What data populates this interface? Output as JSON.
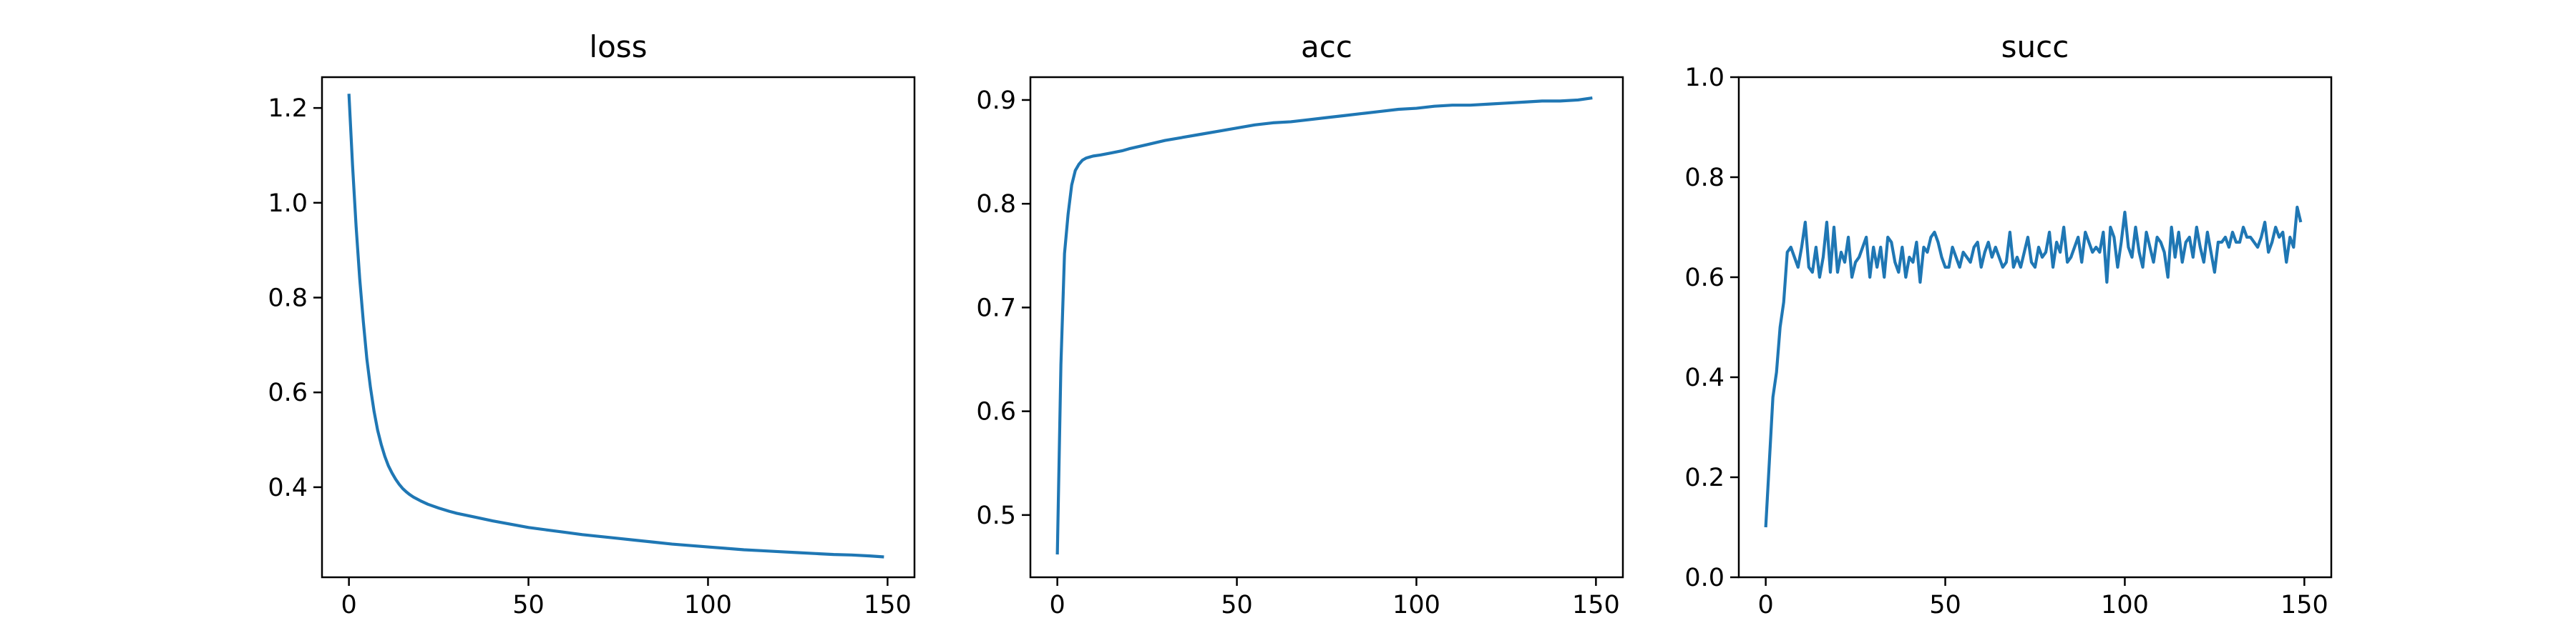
{
  "figure": {
    "background": "#ffffff",
    "line_color": "#1f77b4"
  },
  "chart_data": [
    {
      "type": "line",
      "title": "loss",
      "xlabel": "",
      "ylabel": "",
      "xlim": [
        -7.5,
        157.5
      ],
      "ylim": [
        0.21,
        1.265
      ],
      "xticks": [
        0,
        50,
        100,
        150
      ],
      "xtick_labels": [
        "0",
        "50",
        "100",
        "150"
      ],
      "yticks": [
        0.4,
        0.6,
        0.8,
        1.0,
        1.2
      ],
      "ytick_labels": [
        "0.4",
        "0.6",
        "0.8",
        "1.0",
        "1.2"
      ],
      "grid": false,
      "legend": "none",
      "series": [
        {
          "x": [
            0,
            1,
            2,
            3,
            4,
            5,
            6,
            7,
            8,
            9,
            10,
            11,
            12,
            13,
            14,
            15,
            16,
            17,
            18,
            19,
            20,
            22,
            25,
            28,
            30,
            35,
            40,
            45,
            50,
            55,
            60,
            65,
            70,
            75,
            80,
            85,
            90,
            95,
            100,
            105,
            110,
            115,
            120,
            125,
            130,
            135,
            140,
            145,
            149
          ],
          "y": [
            1.23,
            1.08,
            0.95,
            0.84,
            0.75,
            0.67,
            0.61,
            0.56,
            0.52,
            0.49,
            0.465,
            0.445,
            0.43,
            0.417,
            0.406,
            0.397,
            0.39,
            0.384,
            0.379,
            0.375,
            0.371,
            0.364,
            0.356,
            0.349,
            0.345,
            0.337,
            0.329,
            0.322,
            0.315,
            0.31,
            0.305,
            0.3,
            0.296,
            0.292,
            0.288,
            0.284,
            0.28,
            0.277,
            0.274,
            0.271,
            0.268,
            0.266,
            0.264,
            0.262,
            0.26,
            0.258,
            0.257,
            0.255,
            0.253
          ]
        }
      ]
    },
    {
      "type": "line",
      "title": "acc",
      "xlabel": "",
      "ylabel": "",
      "xlim": [
        -7.5,
        157.5
      ],
      "ylim": [
        0.44,
        0.922
      ],
      "xticks": [
        0,
        50,
        100,
        150
      ],
      "xtick_labels": [
        "0",
        "50",
        "100",
        "150"
      ],
      "yticks": [
        0.5,
        0.6,
        0.7,
        0.8,
        0.9
      ],
      "ytick_labels": [
        "0.5",
        "0.6",
        "0.7",
        "0.8",
        "0.9"
      ],
      "grid": false,
      "legend": "none",
      "series": [
        {
          "x": [
            0,
            1,
            2,
            3,
            4,
            5,
            6,
            7,
            8,
            9,
            10,
            12,
            15,
            18,
            20,
            25,
            30,
            35,
            40,
            45,
            50,
            55,
            60,
            65,
            70,
            75,
            80,
            85,
            90,
            95,
            100,
            105,
            110,
            115,
            120,
            125,
            130,
            135,
            140,
            145,
            149
          ],
          "y": [
            0.462,
            0.645,
            0.752,
            0.79,
            0.818,
            0.832,
            0.838,
            0.842,
            0.844,
            0.845,
            0.846,
            0.847,
            0.849,
            0.851,
            0.853,
            0.857,
            0.861,
            0.864,
            0.867,
            0.87,
            0.873,
            0.876,
            0.878,
            0.879,
            0.881,
            0.883,
            0.885,
            0.887,
            0.889,
            0.891,
            0.892,
            0.894,
            0.895,
            0.895,
            0.896,
            0.897,
            0.898,
            0.899,
            0.899,
            0.9,
            0.902
          ]
        }
      ]
    },
    {
      "type": "line",
      "title": "succ",
      "xlabel": "",
      "ylabel": "",
      "xlim": [
        -7.5,
        157.5
      ],
      "ylim": [
        0.0,
        1.0
      ],
      "xticks": [
        0,
        50,
        100,
        150
      ],
      "xtick_labels": [
        "0",
        "50",
        "100",
        "150"
      ],
      "yticks": [
        0.0,
        0.2,
        0.4,
        0.6,
        0.8,
        1.0
      ],
      "ytick_labels": [
        "0.0",
        "0.2",
        "0.4",
        "0.6",
        "0.8",
        "1.0"
      ],
      "grid": false,
      "legend": "none",
      "series": [
        {
          "x": [
            0,
            1,
            2,
            3,
            4,
            5,
            6,
            7,
            8,
            9,
            10,
            11,
            12,
            13,
            14,
            15,
            16,
            17,
            18,
            19,
            20,
            21,
            22,
            23,
            24,
            25,
            26,
            27,
            28,
            29,
            30,
            31,
            32,
            33,
            34,
            35,
            36,
            37,
            38,
            39,
            40,
            41,
            42,
            43,
            44,
            45,
            46,
            47,
            48,
            49,
            50,
            51,
            52,
            53,
            54,
            55,
            56,
            57,
            58,
            59,
            60,
            61,
            62,
            63,
            64,
            65,
            66,
            67,
            68,
            69,
            70,
            71,
            72,
            73,
            74,
            75,
            76,
            77,
            78,
            79,
            80,
            81,
            82,
            83,
            84,
            85,
            86,
            87,
            88,
            89,
            90,
            91,
            92,
            93,
            94,
            95,
            96,
            97,
            98,
            99,
            100,
            101,
            102,
            103,
            104,
            105,
            106,
            107,
            108,
            109,
            110,
            111,
            112,
            113,
            114,
            115,
            116,
            117,
            118,
            119,
            120,
            121,
            122,
            123,
            124,
            125,
            126,
            127,
            128,
            129,
            130,
            131,
            132,
            133,
            134,
            135,
            136,
            137,
            138,
            139,
            140,
            141,
            142,
            143,
            144,
            145,
            146,
            147,
            148,
            149
          ],
          "y": [
            0.1,
            0.23,
            0.36,
            0.41,
            0.5,
            0.55,
            0.65,
            0.66,
            0.64,
            0.62,
            0.66,
            0.71,
            0.62,
            0.61,
            0.66,
            0.6,
            0.64,
            0.71,
            0.61,
            0.7,
            0.61,
            0.65,
            0.63,
            0.68,
            0.6,
            0.63,
            0.64,
            0.66,
            0.68,
            0.6,
            0.66,
            0.62,
            0.66,
            0.6,
            0.68,
            0.67,
            0.63,
            0.61,
            0.66,
            0.6,
            0.64,
            0.63,
            0.67,
            0.59,
            0.66,
            0.65,
            0.68,
            0.69,
            0.67,
            0.64,
            0.62,
            0.62,
            0.66,
            0.64,
            0.62,
            0.65,
            0.64,
            0.63,
            0.66,
            0.67,
            0.62,
            0.65,
            0.67,
            0.64,
            0.66,
            0.64,
            0.62,
            0.63,
            0.69,
            0.62,
            0.64,
            0.62,
            0.65,
            0.68,
            0.63,
            0.62,
            0.66,
            0.64,
            0.65,
            0.69,
            0.62,
            0.67,
            0.65,
            0.7,
            0.63,
            0.64,
            0.66,
            0.68,
            0.63,
            0.69,
            0.67,
            0.65,
            0.66,
            0.65,
            0.69,
            0.59,
            0.7,
            0.68,
            0.62,
            0.67,
            0.73,
            0.66,
            0.64,
            0.7,
            0.65,
            0.62,
            0.69,
            0.66,
            0.63,
            0.68,
            0.67,
            0.65,
            0.6,
            0.7,
            0.64,
            0.69,
            0.63,
            0.67,
            0.68,
            0.64,
            0.7,
            0.66,
            0.63,
            0.69,
            0.65,
            0.61,
            0.67,
            0.67,
            0.68,
            0.66,
            0.69,
            0.67,
            0.67,
            0.7,
            0.68,
            0.68,
            0.67,
            0.66,
            0.68,
            0.71,
            0.65,
            0.67,
            0.7,
            0.68,
            0.69,
            0.63,
            0.68,
            0.66,
            0.74,
            0.71
          ]
        }
      ]
    }
  ]
}
